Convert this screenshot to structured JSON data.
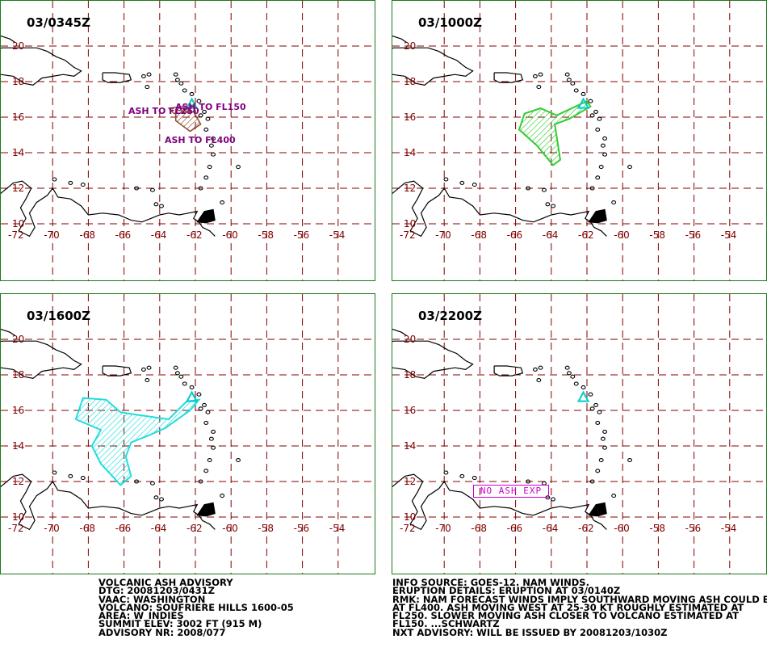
{
  "colors": {
    "grid": "#800000",
    "coast": "#000000",
    "volcano": "#00cccc",
    "panel_border": "#1a7a1a",
    "ash_t0": "#8b4a2b",
    "ash_t6": "#33cc33",
    "ash_t12": "#22dddd",
    "label_purple": "#800080",
    "no_ash": "#cc00cc"
  },
  "lat_labels": [
    "20",
    "18",
    "16",
    "14",
    "12",
    "10"
  ],
  "lon_labels": [
    "-72",
    "-70",
    "-68",
    "-66",
    "-64",
    "-62",
    "-60",
    "-58",
    "-56",
    "-54"
  ],
  "panels": [
    {
      "title": "03/0345Z",
      "ash_labels": [
        "ASH TO FL250",
        "ASH TO FL150",
        "ASH TO FL400"
      ]
    },
    {
      "title": "03/1000Z"
    },
    {
      "title": "03/1600Z"
    },
    {
      "title": "03/2200Z",
      "no_ash": "NO ASH EXP"
    }
  ],
  "advisory_left": [
    "VOLCANIC ASH ADVISORY",
    "DTG: 20081203/0431Z",
    "VAAC: WASHINGTON",
    "VOLCANO: SOUFRIERE HILLS 1600-05",
    "AREA: W_INDIES",
    "SUMMIT ELEV: 3002 FT (915 M)",
    "ADVISORY NR: 2008/077"
  ],
  "advisory_right": [
    "INFO SOURCE: GOES-12. NAM WINDS.",
    "ERUPTION DETAILS: ERUPTION AT 03/0140Z",
    "RMK: NAM FORECAST WINDS IMPLY SOUTHWARD MOVING ASH COULD BE",
    "AT FL400. ASH MOVING WEST AT 25-30 KT ROUGHLY ESTIMATED AT",
    "FL250. SLOWER MOVING ASH CLOSER TO VOLCANO ESTIMATED AT",
    "FL150. ...SCHWARTZ",
    "NXT ADVISORY: WILL BE ISSUED BY 20081203/1030Z"
  ]
}
